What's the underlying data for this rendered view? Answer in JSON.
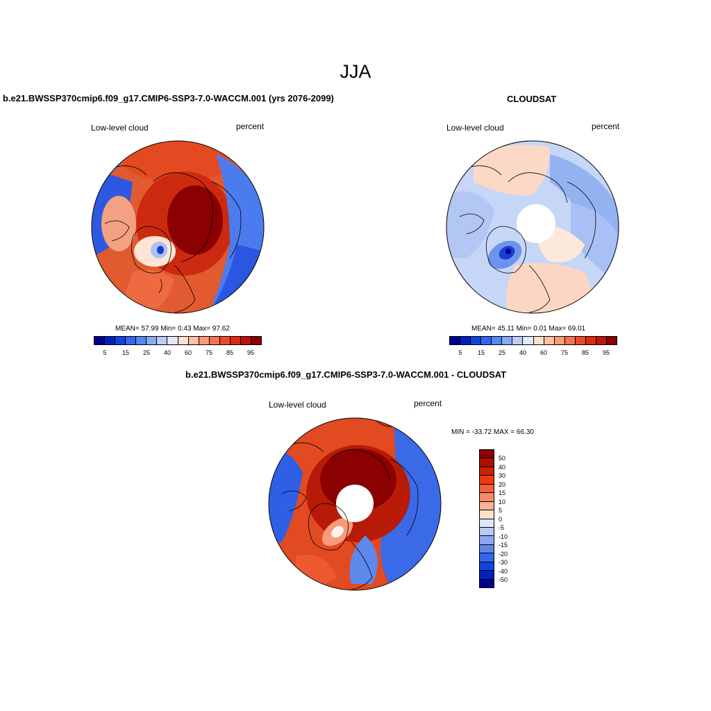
{
  "figure": {
    "season": "JJA"
  },
  "panels": [
    {
      "title": "b.e21.BWSSP370cmip6.f09_g17.CMIP6-SSP3-7.0-WACCM.001 (yrs 2076-2099)",
      "left_label": "Low-level cloud",
      "right_label": "percent",
      "stats": "MEAN=  57.99  Min=   0.43  Max=  97.62"
    },
    {
      "title": "CLOUDSAT",
      "left_label": "Low-level cloud",
      "right_label": "percent",
      "stats": "MEAN=  45.11  Min=   0.01  Max=  69.01"
    },
    {
      "title": "b.e21.BWSSP370cmip6.f09_g17.CMIP6-SSP3-7.0-WACCM.001 - CLOUDSAT",
      "left_label": "Low-level cloud",
      "right_label": "percent",
      "stats": "MIN = -33.72 MAX =  66.30"
    }
  ],
  "colorbar_abs": {
    "colors": [
      "#00008b",
      "#0022bb",
      "#1144dd",
      "#3366ee",
      "#5588ee",
      "#88aaf0",
      "#bbccf5",
      "#e0e8fa",
      "#fde0d0",
      "#fcbfa6",
      "#f99a7a",
      "#f5734f",
      "#ee4a25",
      "#dd2a10",
      "#bb1508",
      "#8b0000"
    ],
    "ticks": [
      "5",
      "15",
      "25",
      "40",
      "60",
      "75",
      "85",
      "95"
    ]
  },
  "colorbar_diff": {
    "colors": [
      "#8b0000",
      "#aa1100",
      "#cc2200",
      "#ee3a10",
      "#f5603a",
      "#f98a66",
      "#fbb394",
      "#fde0cc",
      "#dde6fa",
      "#b7c9f3",
      "#8aa7ef",
      "#5e87ec",
      "#3366ea",
      "#1144dd",
      "#0022bb",
      "#00008b"
    ],
    "ticks": [
      "50",
      "40",
      "30",
      "20",
      "15",
      "10",
      "5",
      "0",
      "-5",
      "-10",
      "-15",
      "-20",
      "-30",
      "-40",
      "-50"
    ]
  }
}
